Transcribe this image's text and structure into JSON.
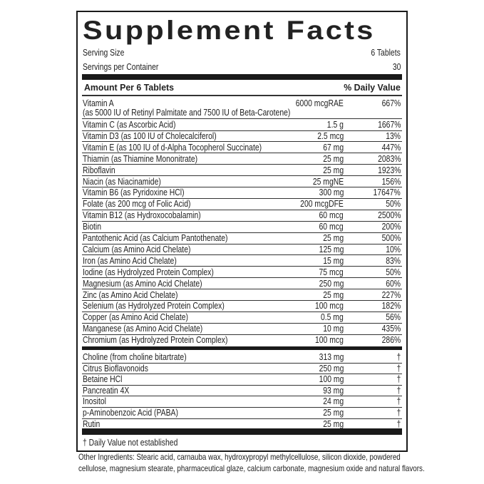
{
  "title": "Supplement Facts",
  "serving_size": {
    "label": "Serving Size",
    "value": "6 Tablets"
  },
  "servings_per_container": {
    "label": "Servings per Container",
    "value": "30"
  },
  "header": {
    "amount": "Amount Per 6 Tablets",
    "dv": "% Daily Value"
  },
  "vitamin_a": {
    "name": "Vitamin A",
    "detail": "(as 5000 IU of Retinyl Palmitate and 7500 IU of Beta-Carotene)",
    "amount": "6000 mcgRAE",
    "dv": "667%"
  },
  "nutrients": [
    {
      "name": "Vitamin C (as Ascorbic Acid)",
      "amount": "1.5 g",
      "dv": "1667%"
    },
    {
      "name": "Vitamin D3 (as 100 IU of Cholecalciferol)",
      "amount": "2.5 mcg",
      "dv": "13%"
    },
    {
      "name": "Vitamin E (as 100 IU of d-Alpha Tocopherol Succinate)",
      "amount": "67 mg",
      "dv": "447%"
    },
    {
      "name": "Thiamin (as Thiamine Mononitrate)",
      "amount": "25 mg",
      "dv": "2083%"
    },
    {
      "name": "Riboflavin",
      "amount": "25 mg",
      "dv": "1923%"
    },
    {
      "name": "Niacin (as Niacinamide)",
      "amount": "25 mgNE",
      "dv": "156%"
    },
    {
      "name": "Vitamin B6 (as Pyridoxine HCl)",
      "amount": "300 mg",
      "dv": "17647%"
    },
    {
      "name": "Folate (as 200 mcg of Folic Acid)",
      "amount": "200 mcgDFE",
      "dv": "50%"
    },
    {
      "name": "Vitamin B12 (as Hydroxocobalamin)",
      "amount": "60 mcg",
      "dv": "2500%"
    },
    {
      "name": "Biotin",
      "amount": "60 mcg",
      "dv": "200%"
    },
    {
      "name": "Pantothenic Acid (as Calcium Pantothenate)",
      "amount": "25 mg",
      "dv": "500%"
    },
    {
      "name": "Calcium (as Amino Acid Chelate)",
      "amount": "125 mg",
      "dv": "10%"
    },
    {
      "name": "Iron (as Amino Acid Chelate)",
      "amount": "15 mg",
      "dv": "83%"
    },
    {
      "name": "Iodine (as Hydrolyzed Protein Complex)",
      "amount": "75 mcg",
      "dv": "50%"
    },
    {
      "name": "Magnesium (as Amino Acid Chelate)",
      "amount": "250 mg",
      "dv": "60%"
    },
    {
      "name": "Zinc (as Amino Acid Chelate)",
      "amount": "25 mg",
      "dv": "227%"
    },
    {
      "name": "Selenium (as Hydrolyzed Protein Complex)",
      "amount": "100 mcg",
      "dv": "182%"
    },
    {
      "name": "Copper (as Amino Acid Chelate)",
      "amount": "0.5 mg",
      "dv": "56%"
    },
    {
      "name": "Manganese (as Amino Acid Chelate)",
      "amount": "10 mg",
      "dv": "435%"
    },
    {
      "name": "Chromium (as Hydrolyzed Protein Complex)",
      "amount": "100 mcg",
      "dv": "286%"
    }
  ],
  "other_nutrients": [
    {
      "name": "Choline (from choline bitartrate)",
      "amount": "313 mg",
      "dv": "†"
    },
    {
      "name": "Citrus Bioflavonoids",
      "amount": "250 mg",
      "dv": "†"
    },
    {
      "name": "Betaine HCl",
      "amount": "100 mg",
      "dv": "†"
    },
    {
      "name": "Pancreatin 4X",
      "amount": "93 mg",
      "dv": "†"
    },
    {
      "name": "Inositol",
      "amount": "24 mg",
      "dv": "†"
    },
    {
      "name": "p-Aminobenzoic Acid (PABA)",
      "amount": "25 mg",
      "dv": "†"
    },
    {
      "name": "Rutin",
      "amount": "25 mg",
      "dv": "†"
    }
  ],
  "footnote": "† Daily Value not established",
  "other_ingredients": [
    "Other Ingredients: Stearic acid, carnauba wax, hydroxypropyl methylcellulose, silicon dioxide, powdered",
    "cellulose, magnesium stearate, pharmaceutical glaze, calcium carbonate, magnesium oxide and natural flavors."
  ]
}
